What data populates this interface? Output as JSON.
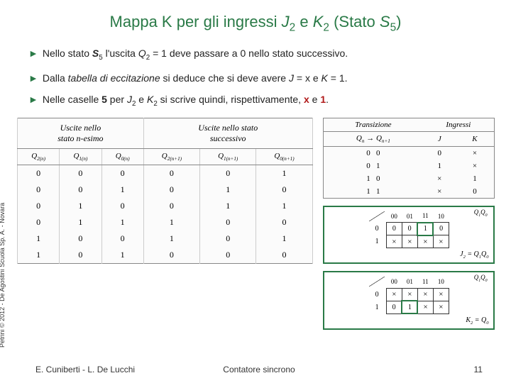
{
  "title_prefix": "Mappa K per gli ingressi ",
  "title_j": "J",
  "title_jsub": "2",
  "title_mid": " e ",
  "title_k": "K",
  "title_ksub": "2",
  "title_state_open": " (Stato ",
  "title_s": "S",
  "title_ssub": "5",
  "title_close": ")",
  "bullets": [
    {
      "html": "Nello stato <span class='bold ital'>S</span><sub>5</sub> l'uscita <span class='ital'>Q</span><sub>2</sub> = 1 deve passare a 0 nello stato successivo."
    },
    {
      "html": "Dalla <span class='ital'>tabella di eccitazione</span> si deduce che si deve avere <span class='ital'>J</span> = x e <span class='ital'>K</span> = 1."
    },
    {
      "html": "Nelle caselle <span class='bold'>5</span> per <span class='ital'>J</span><sub>2</sub> e <span class='ital'>K</span><sub>2</sub> si scrive quindi, rispettivamente, <span class='red'>x</span> e <span class='red'>1</span>."
    }
  ],
  "left_table": {
    "group_headers": [
      "Uscite nello<br>stato n-esimo",
      "Uscite nello stato<br>successivo"
    ],
    "sub_headers": [
      "Q<sub>2(n)</sub>",
      "Q<sub>1(n)</sub>",
      "Q<sub>0(n)</sub>",
      "Q<sub>2(n+1)</sub>",
      "Q<sub>1(n+1)</sub>",
      "Q<sub>0(n+1)</sub>"
    ],
    "rows": [
      [
        "0",
        "0",
        "0",
        "0",
        "0",
        "1"
      ],
      [
        "0",
        "0",
        "1",
        "0",
        "1",
        "0"
      ],
      [
        "0",
        "1",
        "0",
        "0",
        "1",
        "1"
      ],
      [
        "0",
        "1",
        "1",
        "1",
        "0",
        "0"
      ],
      [
        "1",
        "0",
        "0",
        "1",
        "0",
        "1"
      ],
      [
        "1",
        "0",
        "1",
        "0",
        "0",
        "0"
      ]
    ]
  },
  "trans_table": {
    "group_headers": [
      "Transizione",
      "Ingressi"
    ],
    "sub_headers": [
      "Q<sub>n</sub> → Q<sub>n+1</sub>",
      "J",
      "K"
    ],
    "rows": [
      [
        "0 &nbsp; 0",
        "0",
        "×"
      ],
      [
        "0 &nbsp; 1",
        "1",
        "×"
      ],
      [
        "1 &nbsp; 0",
        "×",
        "1"
      ],
      [
        "1 &nbsp; 1",
        "×",
        "0"
      ]
    ]
  },
  "kmapJ": {
    "top_label": "Q<sub>1</sub>Q<sub>0</sub>",
    "col_labels": [
      "00",
      "01",
      "11",
      "10"
    ],
    "row_labels": [
      "0",
      "1"
    ],
    "cells": [
      [
        "0",
        "0",
        "1",
        "0"
      ],
      [
        "×",
        "×",
        "×",
        "×"
      ]
    ],
    "caption": "J<sub>2</sub> = Q<sub>1</sub>Q<sub>0</sub>",
    "highlight": [
      [
        0,
        2
      ]
    ]
  },
  "kmapK": {
    "top_label": "Q<sub>1</sub>Q<sub>0</sub>",
    "col_labels": [
      "00",
      "01",
      "11",
      "10"
    ],
    "row_labels": [
      "0",
      "1"
    ],
    "cells": [
      [
        "×",
        "×",
        "×",
        "×"
      ],
      [
        "0",
        "1",
        "×",
        "×"
      ]
    ],
    "caption": "K<sub>2</sub> = Q<sub>0</sub>",
    "highlight": [
      [
        1,
        1
      ]
    ]
  },
  "vertical_credit": "Petrini © 2012 - De Agostini Scuola Sp. A. - Novara",
  "footer": {
    "authors": "E. Cuniberti - L. De Lucchi",
    "center": "Contatore sincrono",
    "page": "11"
  },
  "colors": {
    "accent": "#2a7a47",
    "red": "#b01818",
    "text": "#222222"
  }
}
